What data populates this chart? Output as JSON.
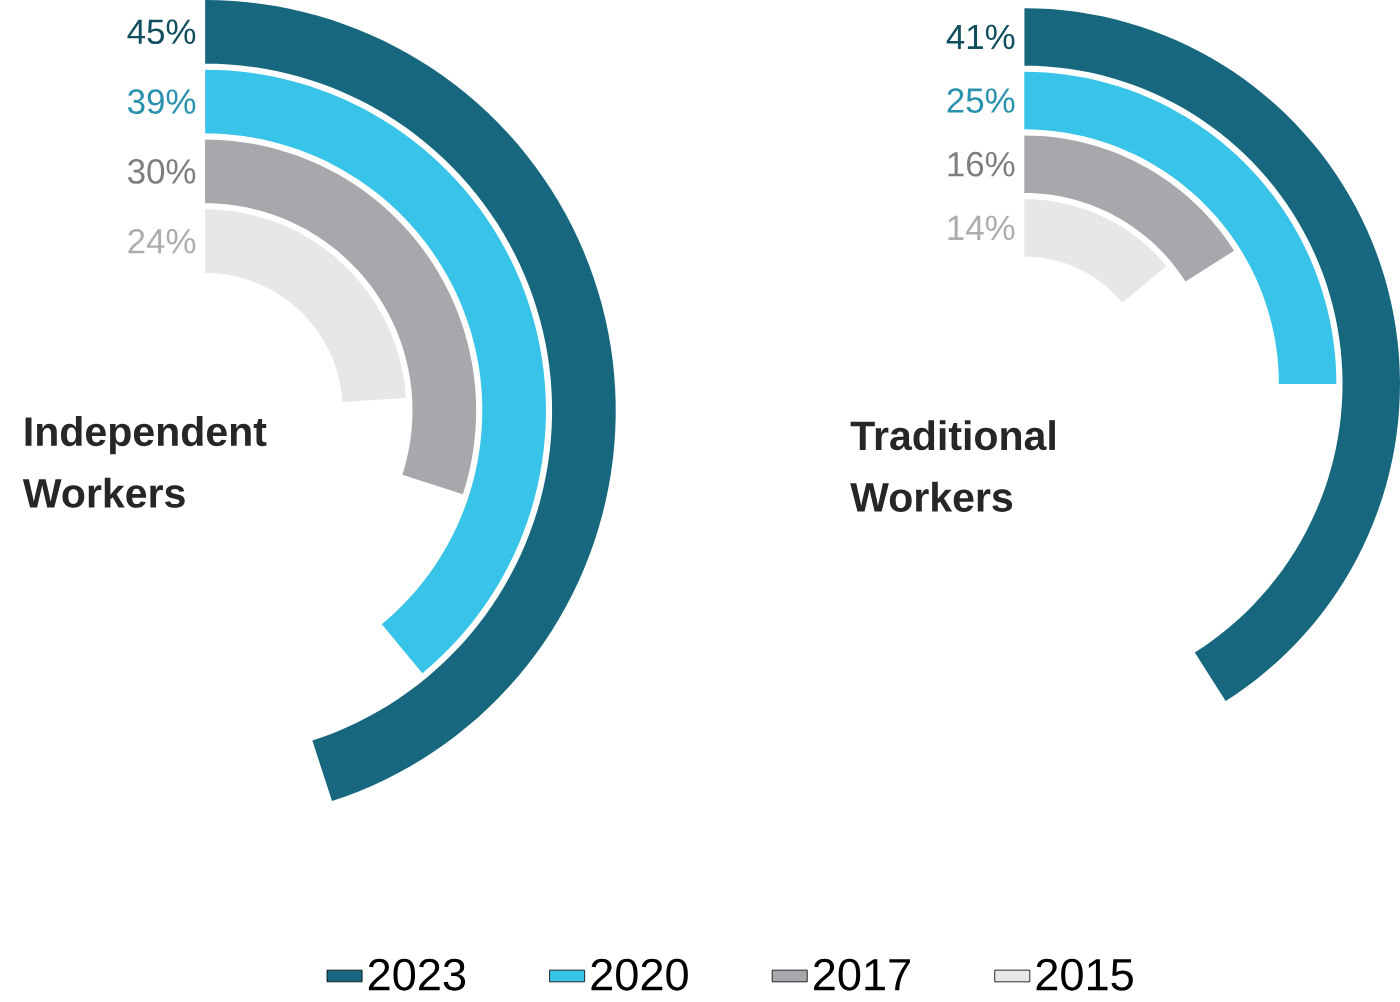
{
  "chart_data": {
    "type": "other",
    "categories": [
      "Independent Workers",
      "Traditional Workers"
    ],
    "series": [
      {
        "name": "2023",
        "color": "#17687e",
        "values": [
          45,
          41
        ],
        "value_labels": [
          "45%",
          "41%"
        ]
      },
      {
        "name": "2020",
        "color": "#38c3e8",
        "values": [
          39,
          25
        ],
        "value_labels": [
          "39%",
          "25%"
        ]
      },
      {
        "name": "2017",
        "color": "#a6a8ab",
        "values": [
          30,
          16
        ],
        "value_labels": [
          "30%",
          "16%"
        ]
      },
      {
        "name": "2015",
        "color": "#e6e7e8",
        "values": [
          24,
          14
        ],
        "value_labels": [
          "24%",
          "14%"
        ]
      }
    ],
    "legend": "bottom"
  }
}
